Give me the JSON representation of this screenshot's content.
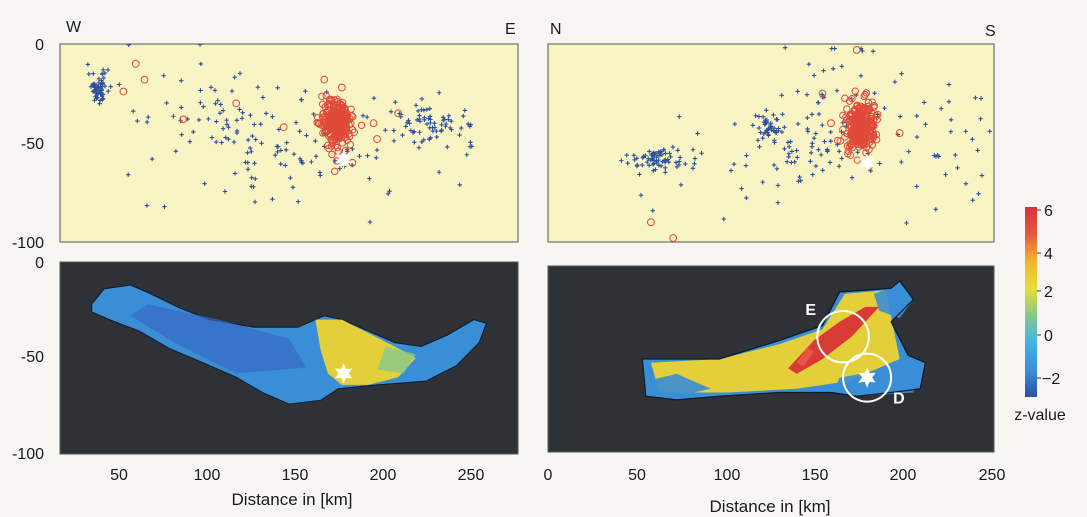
{
  "chart_data": [
    {
      "type": "scatter",
      "panel": "top-left",
      "corner_labels": {
        "left": "W",
        "right": "E"
      },
      "xlim": [
        20,
        280
      ],
      "ylim": [
        -100,
        0
      ],
      "yticks": [
        0,
        -50,
        -100
      ],
      "ytick_labels": [
        "0",
        "-50",
        "-100"
      ],
      "background": "#f8f4c4",
      "series": [
        {
          "kind": "events-plus",
          "color": "#2d4fa0",
          "clusters": [
            {
              "x": 42,
              "y": -22,
              "n": 60,
              "sx": 3,
              "sy": 4
            },
            {
              "x": 110,
              "y": -40,
              "n": 40,
              "sx": 20,
              "sy": 12
            },
            {
              "x": 150,
              "y": -55,
              "n": 60,
              "sx": 25,
              "sy": 15
            },
            {
              "x": 232,
              "y": -40,
              "n": 70,
              "sx": 12,
              "sy": 5
            },
            {
              "x": 90,
              "y": -30,
              "n": 25,
              "sx": 25,
              "sy": 25
            },
            {
              "x": 200,
              "y": -60,
              "n": 25,
              "sx": 30,
              "sy": 20
            }
          ]
        },
        {
          "kind": "events-circle",
          "color": "#e04a3a",
          "clusters": [
            {
              "x": 177,
              "y": -40,
              "n": 260,
              "sx": 4.5,
              "sy": 6
            }
          ],
          "scattered": [
            [
              56,
              -24
            ],
            [
              68,
              -18
            ],
            [
              63,
              -10
            ],
            [
              90,
              -38
            ],
            [
              147,
              -42
            ],
            [
              200,
              -48
            ],
            [
              212,
              -35
            ],
            [
              198,
              -40
            ],
            [
              120,
              -30
            ],
            [
              180,
              -22
            ],
            [
              170,
              -18
            ],
            [
              186,
              -60
            ]
          ]
        }
      ],
      "star": {
        "x": 181,
        "y": -58,
        "color": "#ffffff"
      }
    },
    {
      "type": "scatter",
      "panel": "top-right",
      "corner_labels": {
        "left": "N",
        "right": "S"
      },
      "xlim": [
        -5,
        255
      ],
      "ylim": [
        -100,
        0
      ],
      "background": "#f8f4c4",
      "series": [
        {
          "kind": "events-plus",
          "color": "#2d4fa0",
          "clusters": [
            {
              "x": 60,
              "y": -58,
              "n": 70,
              "sx": 9,
              "sy": 3
            },
            {
              "x": 125,
              "y": -42,
              "n": 35,
              "sx": 3,
              "sy": 3
            },
            {
              "x": 145,
              "y": -48,
              "n": 50,
              "sx": 15,
              "sy": 10
            },
            {
              "x": 110,
              "y": -60,
              "n": 30,
              "sx": 25,
              "sy": 15
            },
            {
              "x": 215,
              "y": -50,
              "n": 40,
              "sx": 20,
              "sy": 20
            },
            {
              "x": 165,
              "y": -20,
              "n": 30,
              "sx": 15,
              "sy": 15
            }
          ]
        },
        {
          "kind": "events-circle",
          "color": "#e04a3a",
          "clusters": [
            {
              "x": 177,
              "y": -42,
              "n": 260,
              "sx": 4.5,
              "sy": 6
            }
          ],
          "scattered": [
            [
              55,
              -90
            ],
            [
              68,
              -98
            ],
            [
              160,
              -40
            ],
            [
              175,
              -3
            ],
            [
              200,
              -45
            ],
            [
              155,
              -25
            ],
            [
              182,
              -62
            ]
          ]
        }
      ],
      "star": {
        "x": 181,
        "y": -60,
        "color": "#ffffff"
      }
    },
    {
      "type": "heatmap",
      "panel": "bottom-left",
      "xlim": [
        20,
        280
      ],
      "ylim": [
        -100,
        0
      ],
      "xticks": [
        50,
        100,
        150,
        200,
        250
      ],
      "xtick_labels": [
        "50",
        "100",
        "150",
        "200",
        "250"
      ],
      "yticks": [
        0,
        -50,
        -100
      ],
      "ytick_labels": [
        "0",
        "-50",
        "-100"
      ],
      "xlabel": "Distance in  [km]",
      "background": "#2e3236",
      "outline": [
        [
          38,
          -22
        ],
        [
          45,
          -14
        ],
        [
          60,
          -12
        ],
        [
          70,
          -16
        ],
        [
          88,
          -24
        ],
        [
          105,
          -30
        ],
        [
          130,
          -34
        ],
        [
          155,
          -34
        ],
        [
          170,
          -28
        ],
        [
          180,
          -30
        ],
        [
          195,
          -36
        ],
        [
          210,
          -42
        ],
        [
          225,
          -44
        ],
        [
          240,
          -38
        ],
        [
          255,
          -30
        ],
        [
          262,
          -32
        ],
        [
          258,
          -42
        ],
        [
          245,
          -54
        ],
        [
          228,
          -62
        ],
        [
          200,
          -64
        ],
        [
          178,
          -66
        ],
        [
          168,
          -72
        ],
        [
          150,
          -74
        ],
        [
          135,
          -68
        ],
        [
          120,
          -60
        ],
        [
          100,
          -52
        ],
        [
          82,
          -45
        ],
        [
          65,
          -36
        ],
        [
          48,
          -30
        ],
        [
          38,
          -26
        ]
      ],
      "warm_zone": [
        [
          165,
          -30
        ],
        [
          180,
          -30
        ],
        [
          195,
          -37
        ],
        [
          210,
          -44
        ],
        [
          222,
          -50
        ],
        [
          212,
          -60
        ],
        [
          195,
          -64
        ],
        [
          180,
          -64
        ],
        [
          172,
          -58
        ],
        [
          168,
          -46
        ]
      ],
      "star": {
        "x": 181,
        "y": -58,
        "color": "#ffffff"
      }
    },
    {
      "type": "heatmap",
      "panel": "bottom-right",
      "xlim": [
        -5,
        255
      ],
      "ylim": [
        -100,
        0
      ],
      "xticks": [
        0,
        50,
        100,
        150,
        200,
        250
      ],
      "xtick_labels": [
        "0",
        "50",
        "100",
        "150",
        "200",
        "250"
      ],
      "xlabel": "Distance in  [km]",
      "background": "#2e3236",
      "outline": [
        [
          50,
          -50
        ],
        [
          95,
          -50
        ],
        [
          130,
          -40
        ],
        [
          155,
          -32
        ],
        [
          165,
          -14
        ],
        [
          195,
          -12
        ],
        [
          200,
          -8
        ],
        [
          208,
          -18
        ],
        [
          195,
          -30
        ],
        [
          205,
          -48
        ],
        [
          215,
          -52
        ],
        [
          212,
          -66
        ],
        [
          195,
          -68
        ],
        [
          175,
          -70
        ],
        [
          160,
          -68
        ],
        [
          130,
          -68
        ],
        [
          95,
          -70
        ],
        [
          70,
          -72
        ],
        [
          52,
          -70
        ]
      ],
      "hot_streaks": [
        {
          "points": [
            [
              135,
              -55
            ],
            [
              150,
              -40
            ],
            [
              165,
              -30
            ],
            [
              180,
              -22
            ],
            [
              188,
              -22
            ],
            [
              172,
              -38
            ],
            [
              155,
              -50
            ],
            [
              140,
              -58
            ]
          ],
          "color": "#d83a35"
        },
        {
          "points": [
            [
              140,
              -52
            ],
            [
              146,
              -44
            ],
            [
              150,
              -46
            ],
            [
              144,
              -54
            ]
          ],
          "color": "#e8564a"
        }
      ],
      "cool_zones": [
        {
          "points": [
            [
              165,
              -60
            ],
            [
              195,
              -55
            ],
            [
              210,
              -58
            ],
            [
              208,
              -68
            ],
            [
              175,
              -70
            ],
            [
              162,
              -66
            ]
          ]
        },
        {
          "points": [
            [
              185,
              -15
            ],
            [
              200,
              -10
            ],
            [
              208,
              -18
            ],
            [
              200,
              -28
            ],
            [
              188,
              -24
            ]
          ]
        },
        {
          "points": [
            [
              52,
              -62
            ],
            [
              70,
              -58
            ],
            [
              90,
              -66
            ],
            [
              70,
              -70
            ],
            [
              52,
              -70
            ]
          ]
        }
      ],
      "circles": [
        {
          "x": 167,
          "y": -38,
          "r": 15,
          "label": "E"
        },
        {
          "x": 181,
          "y": -60,
          "r": 14,
          "label": "D"
        }
      ],
      "star": {
        "x": 181,
        "y": -60,
        "color": "#ffffff"
      }
    }
  ],
  "colorbar": {
    "title": "z-value",
    "ticks": [
      6,
      4,
      2,
      0,
      -2
    ],
    "tick_labels": [
      "6",
      "4",
      "2",
      "0",
      "−2"
    ],
    "range": [
      -2.5,
      6
    ],
    "stops": [
      "#2b4ea0",
      "#3f8fd8",
      "#3fb4e6",
      "#86c98a",
      "#e8dd3a",
      "#f2b52e",
      "#e8583e",
      "#d8303e"
    ]
  },
  "colors": {
    "frame_fill_top": "#f8f4c4",
    "frame_fill_bottom": "#2e3236",
    "cool": "#3a8ed6",
    "warm": "#e2cf3a",
    "hot": "#d8343c"
  }
}
